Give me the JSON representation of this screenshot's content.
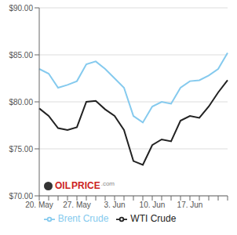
{
  "chart_data": {
    "type": "line",
    "categories": [
      "20. May",
      null,
      null,
      null,
      "27. May",
      null,
      null,
      null,
      "3. Jun",
      null,
      null,
      null,
      "10. Jun",
      null,
      null,
      null,
      "17. Jun",
      null,
      null,
      null,
      null
    ],
    "series": [
      {
        "name": "Brent Crude",
        "color": "#85CAEE",
        "values": [
          83.5,
          83.0,
          81.5,
          81.8,
          82.2,
          84.0,
          84.3,
          83.5,
          82.5,
          81.5,
          78.5,
          77.8,
          79.5,
          80.0,
          79.8,
          81.5,
          82.2,
          82.3,
          82.8,
          83.5,
          85.2
        ]
      },
      {
        "name": "WTI Crude",
        "color": "#222222",
        "values": [
          79.3,
          78.5,
          77.2,
          77.0,
          77.3,
          80.0,
          80.1,
          79.2,
          78.5,
          77.0,
          73.7,
          73.3,
          75.4,
          76.0,
          75.8,
          78.0,
          78.5,
          78.3,
          79.5,
          81.0,
          82.3
        ]
      }
    ],
    "ylim": [
      70.0,
      90.0
    ],
    "yticks": [
      {
        "value": 70.0,
        "label": "$70.00"
      },
      {
        "value": 75.0,
        "label": "$75.00"
      },
      {
        "value": 80.0,
        "label": "$80.00"
      },
      {
        "value": 85.0,
        "label": "$85.00"
      },
      {
        "value": 90.0,
        "label": "$90.00"
      }
    ],
    "grid": true,
    "legend": "bottom",
    "annotations": [
      {
        "text": "OIL",
        "color": "#cc2222"
      },
      {
        "text": "PRICE",
        "color": "#cc2222"
      },
      {
        "text": ".com",
        "color": "#888888"
      }
    ]
  }
}
